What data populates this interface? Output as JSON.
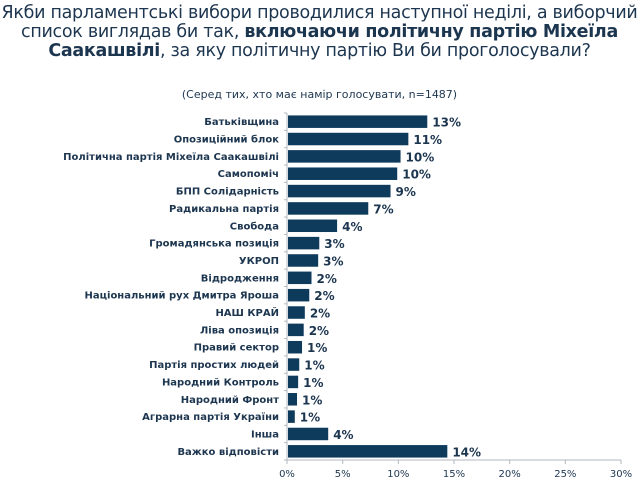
{
  "header": {
    "title_part1": "Якби парламентські вибори проводилися наступної неділі, а виборчий список виглядав би так, ",
    "title_bold": "включаючи політичну партію Міхеїла Саакашвілі",
    "title_part2": ", за яку політичну партію Ви би проголосували?",
    "subtitle": "(Серед тих, хто має намір голосувати, n=1487)"
  },
  "chart_data": {
    "type": "bar",
    "orientation": "horizontal",
    "title": "Якби парламентські вибори проводилися наступної неділі, а виборчий список виглядав би так, включаючи політичну партію Міхеїла Саакашвілі, за яку політичну партію Ви би проголосували?",
    "subtitle": "(Серед тих, хто має намір голосувати, n=1487)",
    "xlabel": "",
    "ylabel": "",
    "xlim": [
      0,
      30
    ],
    "x_ticks": [
      "0%",
      "5%",
      "10%",
      "15%",
      "20%",
      "25%",
      "30%"
    ],
    "grid": false,
    "bar_color": "#0e3a5c",
    "categories": [
      "Батьківщина",
      "Опозиційний блок",
      "Політична партія Міхеїла Саакашвілі",
      "Самопоміч",
      "БПП Солідарність",
      "Радикальна партія",
      "Свобода",
      "Громадянська позиція",
      "УКРОП",
      "Відродження",
      "Національний рух Дмитра Яроша",
      "НАШ КРАЙ",
      "Ліва опозиція",
      "Правий сектор",
      "Партія простих людей",
      "Народний Контроль",
      "Народний Фронт",
      "Аграрна партія України",
      "Інша",
      "Важко відповісти"
    ],
    "values": [
      12.6,
      10.9,
      10.2,
      9.9,
      9.3,
      7.3,
      4.5,
      2.9,
      2.8,
      2.2,
      2.0,
      1.6,
      1.5,
      1.35,
      1.1,
      1.0,
      0.9,
      0.7,
      3.7,
      14.4
    ],
    "data_labels": [
      "13%",
      "11%",
      "10%",
      "10%",
      "9%",
      "7%",
      "4%",
      "3%",
      "3%",
      "2%",
      "2%",
      "2%",
      "2%",
      "1%",
      "1%",
      "1%",
      "1%",
      "1%",
      "4%",
      "14%"
    ]
  }
}
